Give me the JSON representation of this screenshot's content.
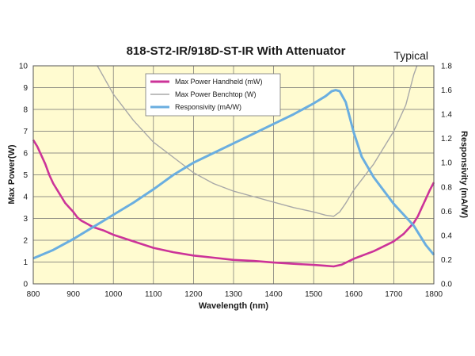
{
  "chart_data": {
    "type": "line",
    "title": "818-ST2-IR/918D-ST-IR With Attenuator",
    "subtitle": "Typical",
    "xlabel": "Wavelength (nm)",
    "ylabel_left": "Max Power(W)",
    "ylabel_right": "Responsivity (mA/W)",
    "xlim": [
      800,
      1800
    ],
    "ylim_left": [
      0,
      10
    ],
    "ylim_right": [
      0,
      1.8
    ],
    "x_ticks": [
      "800",
      "900",
      "1000",
      "1100",
      "1200",
      "1300",
      "1400",
      "1500",
      "1600",
      "1700",
      "1800"
    ],
    "y_left_ticks": [
      "0",
      "1",
      "2",
      "3",
      "4",
      "5",
      "6",
      "7",
      "8",
      "9",
      "10"
    ],
    "y_right_ticks": [
      "0.0",
      "0.2",
      "0.4",
      "0.6",
      "0.8",
      "1.0",
      "1.2",
      "1.4",
      "1.6",
      "1.8"
    ],
    "grid": true,
    "plot_background": "#fffbd0",
    "legend_position": "top-left",
    "series": [
      {
        "name": "Max Power Handheld (mW)",
        "axis": "left",
        "color": "#cc3399",
        "x": [
          800,
          810,
          820,
          830,
          840,
          850,
          860,
          870,
          880,
          890,
          900,
          910,
          920,
          930,
          940,
          950,
          975,
          1000,
          1050,
          1100,
          1150,
          1200,
          1250,
          1300,
          1350,
          1400,
          1450,
          1500,
          1530,
          1550,
          1570,
          1600,
          1650,
          1700,
          1725,
          1750,
          1760,
          1770,
          1780,
          1790,
          1800
        ],
        "y": [
          6.6,
          6.3,
          5.9,
          5.5,
          5.0,
          4.6,
          4.3,
          4.0,
          3.7,
          3.5,
          3.3,
          3.05,
          2.9,
          2.8,
          2.7,
          2.6,
          2.45,
          2.25,
          1.95,
          1.65,
          1.45,
          1.3,
          1.2,
          1.1,
          1.05,
          0.98,
          0.92,
          0.87,
          0.83,
          0.8,
          0.88,
          1.15,
          1.5,
          1.95,
          2.3,
          2.8,
          3.1,
          3.5,
          3.9,
          4.3,
          4.65
        ]
      },
      {
        "name": "Max Power Benchtop (W)",
        "axis": "left",
        "color": "#a8a8a8",
        "x": [
          960,
          1000,
          1050,
          1100,
          1150,
          1200,
          1250,
          1300,
          1350,
          1400,
          1450,
          1500,
          1530,
          1550,
          1565,
          1580,
          1600,
          1650,
          1700,
          1730,
          1750,
          1758
        ],
        "y": [
          10.0,
          8.7,
          7.5,
          6.5,
          5.8,
          5.1,
          4.6,
          4.25,
          4.0,
          3.75,
          3.5,
          3.3,
          3.15,
          3.1,
          3.3,
          3.7,
          4.3,
          5.5,
          7.0,
          8.2,
          9.6,
          10.0
        ]
      },
      {
        "name": "Responsivity (mA/W)",
        "axis": "right",
        "color": "#6aaee0",
        "x": [
          800,
          850,
          900,
          950,
          1000,
          1050,
          1100,
          1150,
          1200,
          1250,
          1300,
          1350,
          1400,
          1450,
          1500,
          1530,
          1545,
          1555,
          1565,
          1580,
          1600,
          1620,
          1650,
          1700,
          1750,
          1780,
          1800
        ],
        "y": [
          0.21,
          0.28,
          0.37,
          0.47,
          0.57,
          0.67,
          0.78,
          0.9,
          1.0,
          1.08,
          1.16,
          1.24,
          1.32,
          1.4,
          1.49,
          1.55,
          1.59,
          1.6,
          1.59,
          1.5,
          1.25,
          1.05,
          0.88,
          0.66,
          0.48,
          0.32,
          0.24
        ]
      }
    ]
  }
}
